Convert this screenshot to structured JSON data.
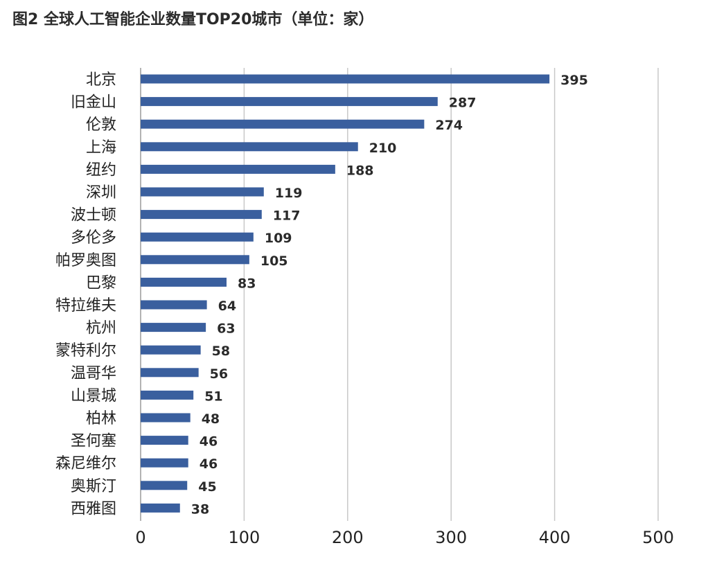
{
  "chart_data": {
    "type": "bar",
    "orientation": "horizontal",
    "title": "图2  全球人工智能企业数量TOP20城市（单位：家）",
    "categories": [
      "北京",
      "旧金山",
      "伦敦",
      "上海",
      "纽约",
      "深圳",
      "波士顿",
      "多伦多",
      "帕罗奥图",
      "巴黎",
      "特拉维夫",
      "杭州",
      "蒙特利尔",
      "温哥华",
      "山景城",
      "柏林",
      "圣何塞",
      "森尼维尔",
      "奥斯汀",
      "西雅图"
    ],
    "values": [
      395,
      287,
      274,
      210,
      188,
      119,
      117,
      109,
      105,
      83,
      64,
      63,
      58,
      56,
      51,
      48,
      46,
      46,
      45,
      38
    ],
    "xlim": [
      0,
      500
    ],
    "xticks": [
      0,
      100,
      200,
      300,
      400,
      500
    ],
    "grid": true,
    "legend": "none",
    "bar_color": "#3a5f9e",
    "xlabel": "",
    "ylabel": ""
  }
}
